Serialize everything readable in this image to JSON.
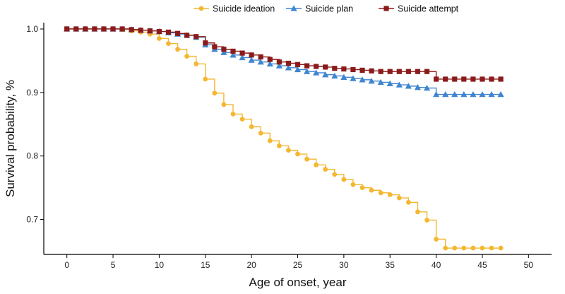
{
  "chart_data": {
    "type": "line",
    "title": "",
    "xlabel": "Age of onset, year",
    "ylabel": "Survival probability, %",
    "xlim": [
      -2.5,
      52.5
    ],
    "ylim": [
      0.645,
      1.01
    ],
    "xticks": [
      0,
      5,
      10,
      15,
      20,
      25,
      30,
      35,
      40,
      45,
      50
    ],
    "yticks": [
      0.7,
      0.8,
      0.9,
      1.0
    ],
    "ytick_labels": [
      "0.7",
      "0.8",
      "0.9",
      "1.0"
    ],
    "grid": false,
    "step": true,
    "legend_position": "top",
    "series": [
      {
        "name": "Suicide ideation",
        "color": "#F4B731",
        "marker": "circle",
        "x": [
          0,
          1,
          2,
          3,
          4,
          5,
          6,
          7,
          8,
          9,
          10,
          11,
          12,
          13,
          14,
          15,
          16,
          17,
          18,
          19,
          20,
          21,
          22,
          23,
          24,
          25,
          26,
          27,
          28,
          29,
          30,
          31,
          32,
          33,
          34,
          35,
          36,
          37,
          38,
          39,
          40,
          41,
          42,
          43,
          44,
          45,
          46,
          47
        ],
        "values": [
          1.0,
          1.0,
          1.0,
          1.0,
          1.0,
          1.0,
          0.999,
          0.997,
          0.995,
          0.992,
          0.985,
          0.977,
          0.968,
          0.957,
          0.945,
          0.921,
          0.899,
          0.881,
          0.866,
          0.858,
          0.846,
          0.836,
          0.824,
          0.816,
          0.809,
          0.803,
          0.795,
          0.786,
          0.779,
          0.771,
          0.763,
          0.755,
          0.75,
          0.746,
          0.742,
          0.739,
          0.734,
          0.727,
          0.712,
          0.699,
          0.669,
          0.655,
          0.655,
          0.655,
          0.655,
          0.655,
          0.655,
          0.655
        ]
      },
      {
        "name": "Suicide plan",
        "color": "#3F85D0",
        "marker": "triangle",
        "x": [
          0,
          1,
          2,
          3,
          4,
          5,
          6,
          7,
          8,
          9,
          10,
          11,
          12,
          13,
          14,
          15,
          16,
          17,
          18,
          19,
          20,
          21,
          22,
          23,
          24,
          25,
          26,
          27,
          28,
          29,
          30,
          31,
          32,
          33,
          34,
          35,
          36,
          37,
          38,
          39,
          40,
          41,
          42,
          43,
          44,
          45,
          46,
          47
        ],
        "values": [
          1.0,
          1.0,
          1.0,
          1.0,
          1.0,
          1.0,
          1.0,
          0.999,
          0.998,
          0.997,
          0.996,
          0.994,
          0.992,
          0.99,
          0.987,
          0.975,
          0.968,
          0.963,
          0.959,
          0.955,
          0.951,
          0.948,
          0.945,
          0.942,
          0.939,
          0.936,
          0.933,
          0.931,
          0.928,
          0.926,
          0.924,
          0.922,
          0.92,
          0.918,
          0.916,
          0.914,
          0.912,
          0.91,
          0.908,
          0.907,
          0.897,
          0.897,
          0.897,
          0.897,
          0.897,
          0.897,
          0.897,
          0.897
        ]
      },
      {
        "name": "Suicide attempt",
        "color": "#8B1A1A",
        "marker": "square",
        "x": [
          0,
          1,
          2,
          3,
          4,
          5,
          6,
          7,
          8,
          9,
          10,
          11,
          12,
          13,
          14,
          15,
          16,
          17,
          18,
          19,
          20,
          21,
          22,
          23,
          24,
          25,
          26,
          27,
          28,
          29,
          30,
          31,
          32,
          33,
          34,
          35,
          36,
          37,
          38,
          39,
          40,
          41,
          42,
          43,
          44,
          45,
          46,
          47
        ],
        "values": [
          1.0,
          1.0,
          1.0,
          1.0,
          1.0,
          1.0,
          1.0,
          0.999,
          0.998,
          0.997,
          0.996,
          0.995,
          0.993,
          0.99,
          0.988,
          0.978,
          0.972,
          0.968,
          0.965,
          0.962,
          0.959,
          0.956,
          0.952,
          0.948,
          0.946,
          0.944,
          0.942,
          0.941,
          0.94,
          0.938,
          0.937,
          0.936,
          0.935,
          0.934,
          0.933,
          0.933,
          0.933,
          0.933,
          0.933,
          0.933,
          0.921,
          0.921,
          0.921,
          0.921,
          0.921,
          0.921,
          0.921,
          0.921
        ]
      }
    ]
  }
}
